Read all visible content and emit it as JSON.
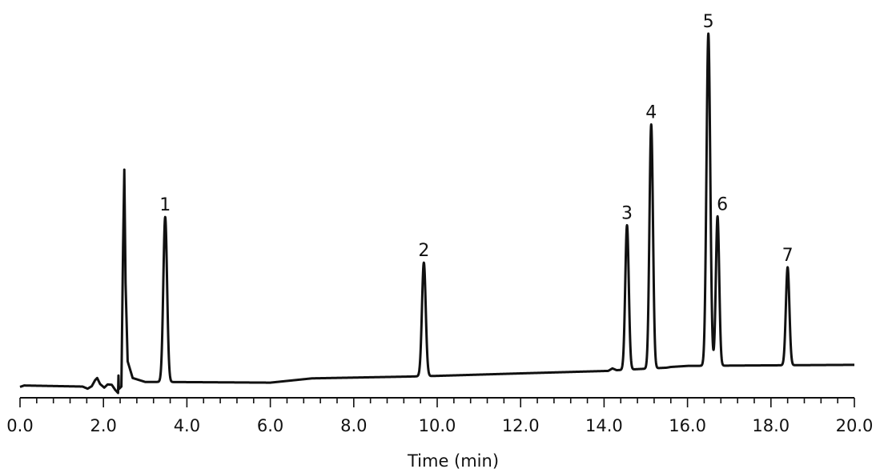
{
  "chart_data": {
    "type": "line",
    "title": "",
    "xlabel": "Time (min)",
    "ylabel": "",
    "xlim": [
      0.0,
      20.0
    ],
    "ylim": [
      0,
      100
    ],
    "grid": false,
    "legend": "none",
    "line_color": "#111111",
    "x_ticks": [
      {
        "value": 0.0,
        "label": "0.0"
      },
      {
        "value": 2.0,
        "label": "2.0"
      },
      {
        "value": 4.0,
        "label": "4.0"
      },
      {
        "value": 6.0,
        "label": "6.0"
      },
      {
        "value": 8.0,
        "label": "8.0"
      },
      {
        "value": 10.0,
        "label": "10.0"
      },
      {
        "value": 12.0,
        "label": "12.0"
      },
      {
        "value": 14.0,
        "label": "14.0"
      },
      {
        "value": 16.0,
        "label": "16.0"
      },
      {
        "value": 18.0,
        "label": "18.0"
      },
      {
        "value": 20.0,
        "label": "20.0"
      }
    ],
    "baseline": [
      [
        0.0,
        0.8
      ],
      [
        0.1,
        1.2
      ],
      [
        1.5,
        0.9
      ],
      [
        1.62,
        0.3
      ],
      [
        1.72,
        1.0
      ],
      [
        1.8,
        2.7
      ],
      [
        1.85,
        3.3
      ],
      [
        1.92,
        1.6
      ],
      [
        2.02,
        0.6
      ],
      [
        2.1,
        1.5
      ],
      [
        2.2,
        1.4
      ],
      [
        2.28,
        0.0
      ],
      [
        2.35,
        -0.9
      ],
      [
        2.36,
        4.0
      ],
      [
        2.37,
        0.2
      ],
      [
        2.43,
        0.9
      ],
      [
        2.47,
        40
      ],
      [
        2.5,
        61.8
      ],
      [
        2.53,
        30
      ],
      [
        2.58,
        8
      ],
      [
        2.7,
        3.3
      ],
      [
        3.0,
        2.2
      ],
      [
        3.3,
        2.2
      ],
      [
        6.0,
        2.0
      ],
      [
        7.0,
        3.2
      ],
      [
        9.3,
        3.7
      ],
      [
        10.0,
        3.9
      ],
      [
        12.0,
        4.6
      ],
      [
        13.5,
        5.1
      ],
      [
        14.1,
        5.3
      ],
      [
        14.2,
        6.0
      ],
      [
        14.3,
        5.5
      ],
      [
        15.5,
        6.2
      ],
      [
        15.6,
        6.4
      ],
      [
        16.0,
        6.7
      ],
      [
        17.2,
        6.8
      ],
      [
        20.0,
        7.0
      ]
    ],
    "peaks": [
      {
        "label": "1",
        "x": 3.48,
        "y": 48.5,
        "width": 0.045
      },
      {
        "label": "2",
        "x": 9.68,
        "y": 35.7,
        "width": 0.045
      },
      {
        "label": "3",
        "x": 14.55,
        "y": 46.2,
        "width": 0.042
      },
      {
        "label": "4",
        "x": 15.13,
        "y": 74.5,
        "width": 0.042
      },
      {
        "label": "5",
        "x": 16.5,
        "y": 100.0,
        "width": 0.045
      },
      {
        "label": "6",
        "x": 16.72,
        "y": 48.7,
        "width": 0.04
      },
      {
        "label": "7",
        "x": 18.4,
        "y": 34.4,
        "width": 0.042
      }
    ]
  }
}
